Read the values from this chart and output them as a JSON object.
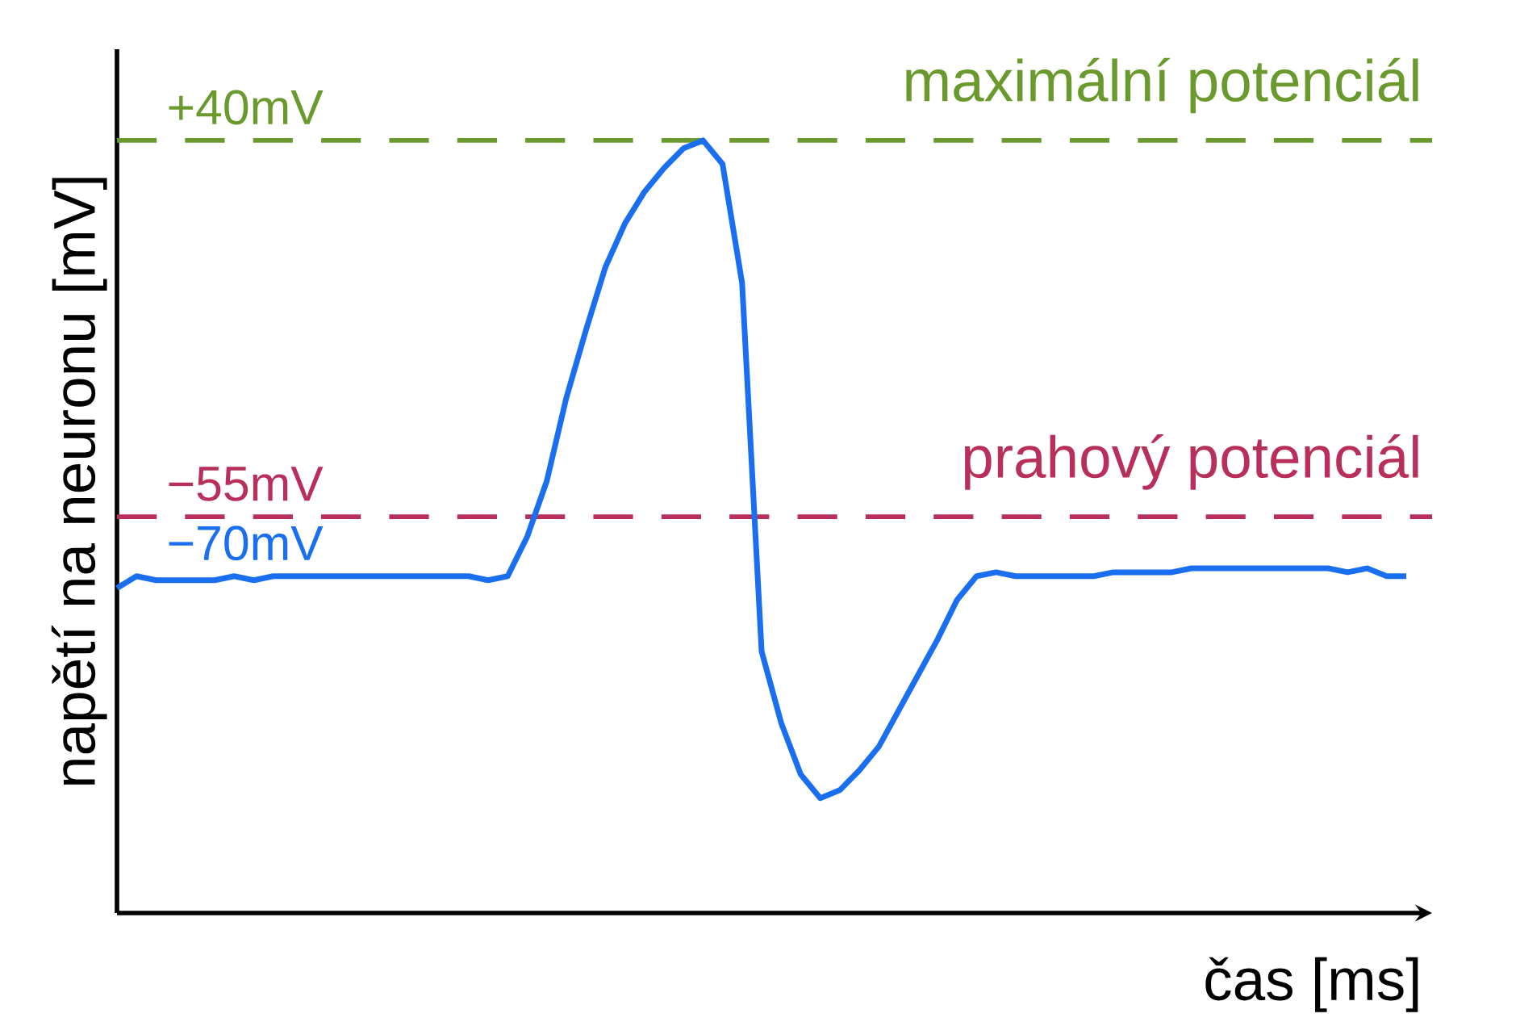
{
  "chart_data": {
    "type": "line",
    "xlabel": "čas [ms]",
    "ylabel": "napětí na neuronu [mV]",
    "categories": [
      null,
      null,
      null,
      null,
      null,
      null,
      null,
      null,
      null,
      null,
      null,
      null,
      null,
      null,
      null,
      null,
      null,
      null,
      null,
      null,
      null,
      null,
      null,
      null,
      null,
      null,
      null,
      null,
      null,
      null,
      null,
      null,
      null,
      null,
      null,
      null,
      null,
      null,
      null,
      null,
      null,
      null,
      null,
      null,
      null,
      null,
      null,
      null,
      null,
      null,
      null,
      null,
      null,
      null,
      null,
      null,
      null,
      null,
      null,
      null,
      null,
      null,
      null,
      null,
      null,
      null,
      null
    ],
    "series": [
      {
        "color": "#1a6ff0",
        "values": [
          -73,
          -70,
          -71,
          -71,
          -71,
          -71,
          -70,
          -71,
          -70,
          -70,
          -70,
          -70,
          -70,
          -70,
          -70,
          -70,
          -70,
          -70,
          -70,
          -71,
          -70,
          -60,
          -46,
          -25,
          -8,
          8,
          19,
          27,
          33,
          38,
          40,
          34,
          4,
          -89,
          -107,
          -120,
          -126,
          -124,
          -119,
          -113,
          -104,
          -95,
          -86,
          -76,
          -70,
          -69,
          -70,
          -70,
          -70,
          -70,
          -70,
          -69,
          -69,
          -69,
          -69,
          -68,
          -68,
          -68,
          -68,
          -68,
          -68,
          -68,
          -68,
          -69,
          -68,
          -70,
          -70
        ]
      }
    ],
    "ylim": [
      -155,
      63
    ],
    "yticks": [
      {
        "value": 40,
        "label": "+40mV"
      },
      {
        "value": -55,
        "label": "−55mV"
      },
      {
        "value": -70,
        "label": "−70mV"
      }
    ],
    "tick_labels": "y",
    "ref_lines": [
      {
        "axis": "y",
        "value": 40,
        "label": "maximální potenciál",
        "color": "#6a9a2e",
        "line_style": "dashed"
      },
      {
        "axis": "y",
        "value": -55,
        "label": "prahový potenciál",
        "color": "#b8305a",
        "line_style": "dashed"
      }
    ]
  }
}
